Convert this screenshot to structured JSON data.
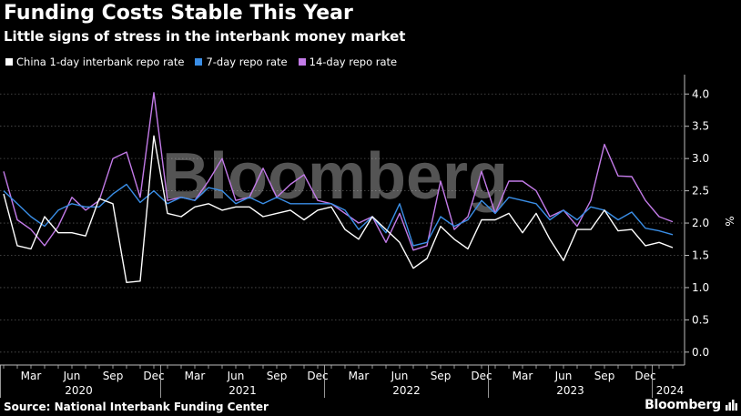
{
  "header": {
    "title": "Funding Costs Stable This Year",
    "subtitle": "Little signs of stress in the interbank money market"
  },
  "footer": {
    "source": "Source: National Interbank Funding Center",
    "brand": "Bloomberg"
  },
  "watermark": "Bloomberg",
  "colors": {
    "background": "#000000",
    "series_1day": "#ffffff",
    "series_7day": "#3a8ee6",
    "series_14day": "#c37be8",
    "grid": "#555555"
  },
  "chart_data": {
    "type": "line",
    "ylabel": "%",
    "ylim": [
      -0.2,
      4.3
    ],
    "yticks": [
      0.0,
      0.5,
      1.0,
      1.5,
      2.0,
      2.5,
      3.0,
      3.5,
      4.0
    ],
    "ytick_labels": [
      "0.0",
      "0.5",
      "1.0",
      "1.5",
      "2.0",
      "2.5",
      "3.0",
      "3.5",
      "4.0"
    ],
    "grid": true,
    "legend_position": "top-left",
    "x_month_labels": [
      "Mar",
      "Jun",
      "Sep",
      "Dec",
      "Mar",
      "Jun",
      "Sep",
      "Dec",
      "Mar",
      "Jun",
      "Sep",
      "Dec",
      "Mar",
      "Jun",
      "Sep",
      "Dec"
    ],
    "x_year_labels": [
      "2020",
      "2021",
      "2022",
      "2023",
      "2024"
    ],
    "x": [
      "2020-01",
      "2020-02",
      "2020-03",
      "2020-04",
      "2020-05",
      "2020-06",
      "2020-07",
      "2020-08",
      "2020-09",
      "2020-10",
      "2020-11",
      "2020-12",
      "2021-01",
      "2021-02",
      "2021-03",
      "2021-04",
      "2021-05",
      "2021-06",
      "2021-07",
      "2021-08",
      "2021-09",
      "2021-10",
      "2021-11",
      "2021-12",
      "2022-01",
      "2022-02",
      "2022-03",
      "2022-04",
      "2022-05",
      "2022-06",
      "2022-07",
      "2022-08",
      "2022-09",
      "2022-10",
      "2022-11",
      "2022-12",
      "2023-01",
      "2023-02",
      "2023-03",
      "2023-04",
      "2023-05",
      "2023-06",
      "2023-07",
      "2023-08",
      "2023-09",
      "2023-10",
      "2023-11",
      "2023-12",
      "2024-01",
      "2024-02"
    ],
    "series": [
      {
        "name": "China 1-day interbank repo rate",
        "color": "#ffffff",
        "values": [
          2.45,
          1.65,
          1.6,
          2.1,
          1.85,
          1.85,
          1.8,
          2.38,
          2.3,
          1.08,
          1.1,
          3.35,
          2.15,
          2.1,
          2.25,
          2.3,
          2.2,
          2.25,
          2.25,
          2.1,
          2.15,
          2.2,
          2.05,
          2.2,
          2.25,
          1.9,
          1.75,
          2.1,
          1.9,
          1.7,
          1.3,
          1.45,
          1.95,
          1.75,
          1.6,
          2.05,
          2.05,
          2.15,
          1.85,
          2.15,
          1.75,
          1.42,
          1.9,
          1.9,
          2.2,
          1.88,
          1.9,
          1.65,
          1.7,
          1.62
        ]
      },
      {
        "name": "7-day repo rate",
        "color": "#3a8ee6",
        "values": [
          2.5,
          2.3,
          2.1,
          1.95,
          2.2,
          2.3,
          2.25,
          2.25,
          2.45,
          2.6,
          2.32,
          2.5,
          2.3,
          2.4,
          2.35,
          2.55,
          2.5,
          2.3,
          2.4,
          2.3,
          2.4,
          2.3,
          2.3,
          2.3,
          2.3,
          2.2,
          1.9,
          2.1,
          1.85,
          2.3,
          1.65,
          1.7,
          2.1,
          1.95,
          2.05,
          2.35,
          2.15,
          2.4,
          2.35,
          2.3,
          2.05,
          2.2,
          2.05,
          2.25,
          2.2,
          2.05,
          2.17,
          1.92,
          1.88,
          1.82
        ]
      },
      {
        "name": "14-day repo rate",
        "color": "#c37be8",
        "values": [
          2.8,
          2.05,
          1.9,
          1.65,
          1.95,
          2.4,
          2.2,
          2.35,
          3.0,
          3.1,
          2.4,
          4.02,
          2.35,
          2.4,
          2.35,
          2.65,
          3.0,
          2.35,
          2.4,
          2.85,
          2.4,
          2.6,
          2.75,
          2.35,
          2.3,
          2.15,
          2.0,
          2.1,
          1.7,
          2.15,
          1.58,
          1.65,
          2.65,
          1.9,
          2.1,
          2.8,
          2.15,
          2.65,
          2.65,
          2.5,
          2.1,
          2.2,
          1.95,
          2.35,
          3.22,
          2.73,
          2.72,
          2.35,
          2.1,
          2.02
        ]
      }
    ]
  }
}
